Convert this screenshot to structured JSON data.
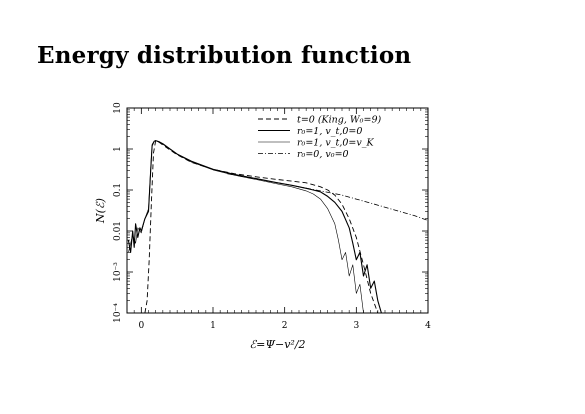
{
  "page": {
    "title": "Energy distribution function"
  },
  "chart_data": {
    "type": "line",
    "xlabel": "ℰ=Ψ−v²/2",
    "ylabel": "N(ℰ)",
    "xlim": [
      -0.2,
      4
    ],
    "ylim": [
      0.0001,
      10
    ],
    "yscale": "log",
    "grid": false,
    "legend_position": "top-right",
    "x_ticks": [
      {
        "value": 0,
        "label": "0"
      },
      {
        "value": 1,
        "label": "1"
      },
      {
        "value": 2,
        "label": "2"
      },
      {
        "value": 3,
        "label": "3"
      },
      {
        "value": 4,
        "label": "4"
      }
    ],
    "y_ticks": [
      {
        "value": 0.0001,
        "label": "10⁻⁴"
      },
      {
        "value": 0.001,
        "label": "10⁻³"
      },
      {
        "value": 0.01,
        "label": "0.01"
      },
      {
        "value": 0.1,
        "label": "0.1"
      },
      {
        "value": 1,
        "label": "1"
      },
      {
        "value": 10,
        "label": "10"
      }
    ],
    "series": [
      {
        "name": "t=0 (King, W₀=9)",
        "style": "dashed",
        "x": [
          0.05,
          0.08,
          0.11,
          0.14,
          0.17,
          0.2,
          0.25,
          0.3,
          0.4,
          0.5,
          0.7,
          1.0,
          1.3,
          1.6,
          1.9,
          2.1,
          2.3,
          2.5,
          2.6,
          2.7,
          2.8,
          2.9,
          3.0,
          3.1,
          3.2,
          3.3
        ],
        "y": [
          0.0001,
          0.0002,
          0.002,
          0.05,
          0.8,
          1.6,
          1.45,
          1.25,
          0.95,
          0.72,
          0.47,
          0.32,
          0.25,
          0.21,
          0.18,
          0.165,
          0.15,
          0.12,
          0.1,
          0.075,
          0.045,
          0.02,
          0.007,
          0.0015,
          0.0003,
          0.0001
        ]
      },
      {
        "name": "r₀=1, v_t,0=0",
        "style": "solid",
        "x": [
          -0.18,
          -0.15,
          -0.12,
          -0.1,
          -0.08,
          -0.05,
          -0.02,
          0.0,
          0.05,
          0.1,
          0.13,
          0.15,
          0.18,
          0.2,
          0.25,
          0.3,
          0.4,
          0.5,
          0.7,
          1.0,
          1.3,
          1.6,
          1.9,
          2.1,
          2.3,
          2.4,
          2.5,
          2.6,
          2.7,
          2.8,
          2.9,
          2.95,
          3.0,
          3.05,
          3.1,
          3.15,
          3.2,
          3.25,
          3.3,
          3.35
        ],
        "y": [
          0.006,
          0.003,
          0.01,
          0.004,
          0.015,
          0.007,
          0.012,
          0.01,
          0.02,
          0.03,
          0.3,
          1.2,
          1.55,
          1.6,
          1.5,
          1.35,
          1.0,
          0.75,
          0.5,
          0.32,
          0.24,
          0.19,
          0.15,
          0.13,
          0.11,
          0.1,
          0.09,
          0.07,
          0.05,
          0.03,
          0.012,
          0.005,
          0.002,
          0.003,
          0.0008,
          0.0015,
          0.0004,
          0.0006,
          0.0002,
          0.0001
        ]
      },
      {
        "name": "r₀=1, v_t,0=v_K",
        "style": "solid-thin",
        "x": [
          -0.18,
          -0.12,
          -0.08,
          -0.05,
          0.0,
          0.05,
          0.1,
          0.13,
          0.15,
          0.18,
          0.2,
          0.25,
          0.3,
          0.4,
          0.5,
          0.7,
          1.0,
          1.3,
          1.6,
          1.9,
          2.1,
          2.3,
          2.4,
          2.5,
          2.6,
          2.7,
          2.75,
          2.8,
          2.85,
          2.9,
          2.95,
          3.0,
          3.05,
          3.1
        ],
        "y": [
          0.003,
          0.008,
          0.005,
          0.012,
          0.009,
          0.02,
          0.035,
          0.35,
          1.3,
          1.55,
          1.6,
          1.45,
          1.3,
          1.0,
          0.74,
          0.48,
          0.31,
          0.23,
          0.18,
          0.14,
          0.12,
          0.095,
          0.08,
          0.06,
          0.035,
          0.015,
          0.006,
          0.002,
          0.003,
          0.0008,
          0.0015,
          0.0003,
          0.0005,
          0.0001
        ]
      },
      {
        "name": "r₀=0, v₀=0",
        "style": "dash-dot",
        "x": [
          1.2,
          1.5,
          1.8,
          2.0,
          2.2,
          2.5,
          2.8,
          3.0,
          3.2,
          3.4,
          3.6,
          3.8,
          4.0
        ],
        "y": [
          0.25,
          0.2,
          0.16,
          0.14,
          0.12,
          0.095,
          0.075,
          0.06,
          0.048,
          0.038,
          0.03,
          0.024,
          0.018
        ]
      }
    ]
  }
}
